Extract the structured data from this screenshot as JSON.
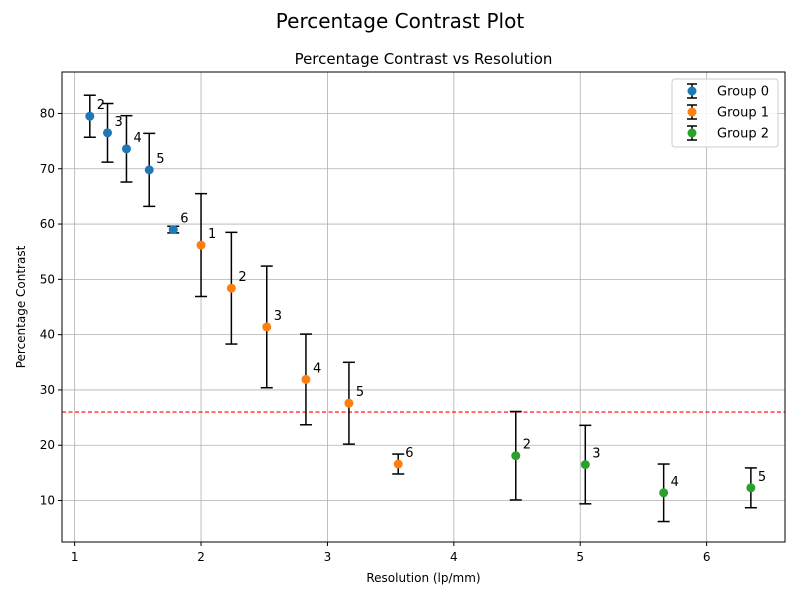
{
  "suptitle": "Percentage Contrast Plot",
  "chart_data": {
    "type": "scatter",
    "title": "Percentage Contrast vs Resolution",
    "xlabel": "Resolution (lp/mm)",
    "ylabel": "Percentage Contrast",
    "xlim": [
      0.9,
      6.62
    ],
    "ylim": [
      2.5,
      87.5
    ],
    "xticks": [
      1,
      2,
      3,
      4,
      5,
      6
    ],
    "yticks": [
      10,
      20,
      30,
      40,
      50,
      60,
      70,
      80
    ],
    "grid": true,
    "legend_position": "top-right",
    "threshold_line": {
      "y": 26,
      "color": "#ff0000",
      "style": "dashed"
    },
    "errorbar_color": "#000000",
    "series": [
      {
        "name": "Group 0",
        "color": "#1f77b4",
        "points": [
          {
            "x": 1.12,
            "y": 79.5,
            "err": 3.8,
            "label": "2"
          },
          {
            "x": 1.26,
            "y": 76.5,
            "err": 5.3,
            "label": "3"
          },
          {
            "x": 1.41,
            "y": 73.6,
            "err": 6.0,
            "label": "4"
          },
          {
            "x": 1.59,
            "y": 69.8,
            "err": 6.6,
            "label": "5"
          },
          {
            "x": 1.78,
            "y": 59.0,
            "err": 0.6,
            "label": "6"
          }
        ]
      },
      {
        "name": "Group 1",
        "color": "#ff7f0e",
        "points": [
          {
            "x": 2.0,
            "y": 56.2,
            "err": 9.3,
            "label": "1"
          },
          {
            "x": 2.24,
            "y": 48.4,
            "err": 10.1,
            "label": "2"
          },
          {
            "x": 2.52,
            "y": 41.4,
            "err": 11.0,
            "label": "3"
          },
          {
            "x": 2.83,
            "y": 31.9,
            "err": 8.2,
            "label": "4"
          },
          {
            "x": 3.17,
            "y": 27.6,
            "err": 7.4,
            "label": "5"
          },
          {
            "x": 3.56,
            "y": 16.6,
            "err": 1.8,
            "label": "6"
          }
        ]
      },
      {
        "name": "Group 2",
        "color": "#2ca02c",
        "points": [
          {
            "x": 4.49,
            "y": 18.1,
            "err": 8.0,
            "label": "2"
          },
          {
            "x": 5.04,
            "y": 16.5,
            "err": 7.1,
            "label": "3"
          },
          {
            "x": 5.66,
            "y": 11.4,
            "err": 5.2,
            "label": "4"
          },
          {
            "x": 6.35,
            "y": 12.3,
            "err": 3.6,
            "label": "5"
          }
        ]
      }
    ]
  }
}
